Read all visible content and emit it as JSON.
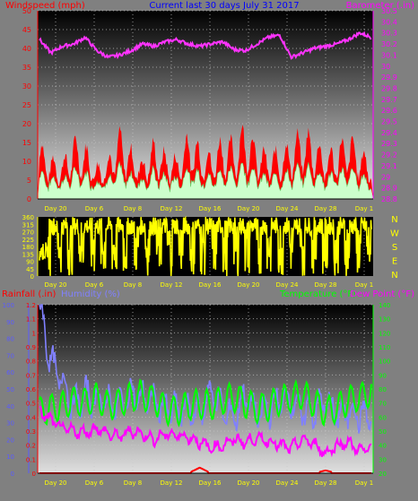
{
  "header": {
    "left_label": "Windspeed (mph)",
    "center_label": "Current last 30 days July 31 2017",
    "right_label": "Barometer (.in)"
  },
  "bottom_header": {
    "rainfall_label": "Rainfall (.in)",
    "humidity_label": "Humidity (%)",
    "temperature_label": "Temperature (°F)",
    "dewpoint_label": "Dew Point (°F)"
  },
  "colors": {
    "background": "#808080",
    "windspeed_max": "#ff0000",
    "windspeed_avg": "#ccffcc",
    "barometer": "#ff33ff",
    "direction": "#ffff00",
    "rainfall": "#ff0000",
    "humidity": "#8080ff",
    "temperature": "#00ff00",
    "dewpoint": "#ff00ff",
    "axis_left_wind": "#ff0000",
    "axis_right_baro": "#ff00ff",
    "axis_humidity": "#5a5aff",
    "axis_temp": "#00ff00",
    "tick_text": "#ffff00",
    "header_center": "#0000ff"
  },
  "x_tick_labels": [
    "Day 20",
    "Day 6",
    "Day 8",
    "Day 12",
    "Day 16",
    "Day 20",
    "Day 24",
    "Day 28",
    "Day 1"
  ],
  "chart_data": [
    {
      "type": "area",
      "name": "wind-barometer",
      "series": [
        {
          "name": "Windspeed (mph)",
          "axis": "left",
          "values": [
            13,
            9,
            8,
            14,
            12,
            7,
            9,
            16,
            11,
            8,
            13,
            10,
            9,
            15,
            12,
            10,
            14,
            13,
            18,
            12,
            10,
            11,
            13,
            16,
            14,
            10,
            12,
            15,
            11,
            9
          ]
        },
        {
          "name": "Barometer (.in)",
          "axis": "right",
          "values": [
            30.24,
            30.12,
            30.18,
            30.2,
            30.26,
            30.14,
            30.08,
            30.1,
            30.14,
            30.2,
            30.18,
            30.22,
            30.24,
            30.2,
            30.18,
            30.2,
            30.22,
            30.15,
            30.14,
            30.2,
            30.26,
            30.28,
            30.08,
            30.12,
            30.16,
            30.18,
            30.2,
            30.24,
            30.3,
            30.26
          ]
        }
      ],
      "ylim_left": [
        0,
        50
      ],
      "ylim_right": [
        28.8,
        30.5
      ],
      "y_ticks_left": [
        "0",
        "5",
        "10",
        "15",
        "20",
        "25",
        "30",
        "35",
        "40",
        "45",
        "50"
      ],
      "y_ticks_right": [
        "28.8",
        "28.9",
        "29",
        "29.1",
        "29.2",
        "29.3",
        "29.4",
        "29.5",
        "29.6",
        "29.7",
        "29.8",
        "29.9",
        "30",
        "30.1",
        "30.2",
        "30.3",
        "30.4",
        "30.5"
      ]
    },
    {
      "type": "bar",
      "name": "wind-direction",
      "ylim": [
        0,
        360
      ],
      "y_ticks": [
        "0",
        "45",
        "90",
        "135",
        "180",
        "225",
        "270",
        "315",
        "360"
      ],
      "direction_letters": [
        "N",
        "W",
        "S",
        "E",
        "N"
      ]
    },
    {
      "type": "line",
      "name": "rain-humidity-temp-dew",
      "series": [
        {
          "name": "Rainfall (.in)",
          "axis": "rain",
          "values": [
            0,
            0,
            0,
            0,
            0,
            0,
            0,
            0,
            0,
            0,
            0,
            0,
            0,
            0,
            0.04,
            0,
            0,
            0,
            0,
            0,
            0,
            0,
            0,
            0,
            0,
            0.02,
            0,
            0,
            0,
            0
          ]
        },
        {
          "name": "Humidity (%)",
          "axis": "humidity",
          "values": [
            100,
            65,
            55,
            40,
            46,
            44,
            42,
            40,
            47,
            44,
            43,
            39,
            37,
            38,
            35,
            49,
            37,
            33,
            47,
            34,
            38,
            43,
            44,
            36,
            37,
            43,
            34,
            37,
            35,
            34
          ]
        },
        {
          "name": "Temperature (°F)",
          "axis": "temp",
          "values": [
            70,
            72,
            74,
            78,
            76,
            80,
            74,
            76,
            80,
            82,
            78,
            72,
            70,
            74,
            76,
            74,
            78,
            80,
            76,
            72,
            74,
            78,
            80,
            82,
            76,
            70,
            72,
            78,
            80,
            84
          ]
        },
        {
          "name": "Dew Point (°F)",
          "axis": "temp",
          "values": [
            64,
            58,
            52,
            50,
            49,
            52,
            48,
            46,
            50,
            48,
            44,
            48,
            47,
            46,
            42,
            38,
            40,
            44,
            42,
            45,
            43,
            40,
            38,
            44,
            41,
            34,
            40,
            42,
            36,
            38
          ]
        }
      ],
      "ylim_rain": [
        0,
        1.2
      ],
      "ylim_humidity": [
        0,
        100
      ],
      "ylim_temp": [
        20,
        140
      ],
      "y_ticks_rain": [
        "0",
        "0.1",
        "0.2",
        "0.3",
        "0.4",
        "0.5",
        "0.6",
        "0.7",
        "0.8",
        "0.9",
        "1",
        "1.1",
        "1.2"
      ],
      "y_ticks_humidity": [
        "0",
        "10",
        "20",
        "30",
        "40",
        "50",
        "60",
        "70",
        "80",
        "90",
        "100"
      ],
      "y_ticks_temp": [
        "20",
        "30",
        "40",
        "50",
        "60",
        "70",
        "80",
        "90",
        "100",
        "110",
        "120",
        "130",
        "140"
      ]
    }
  ]
}
